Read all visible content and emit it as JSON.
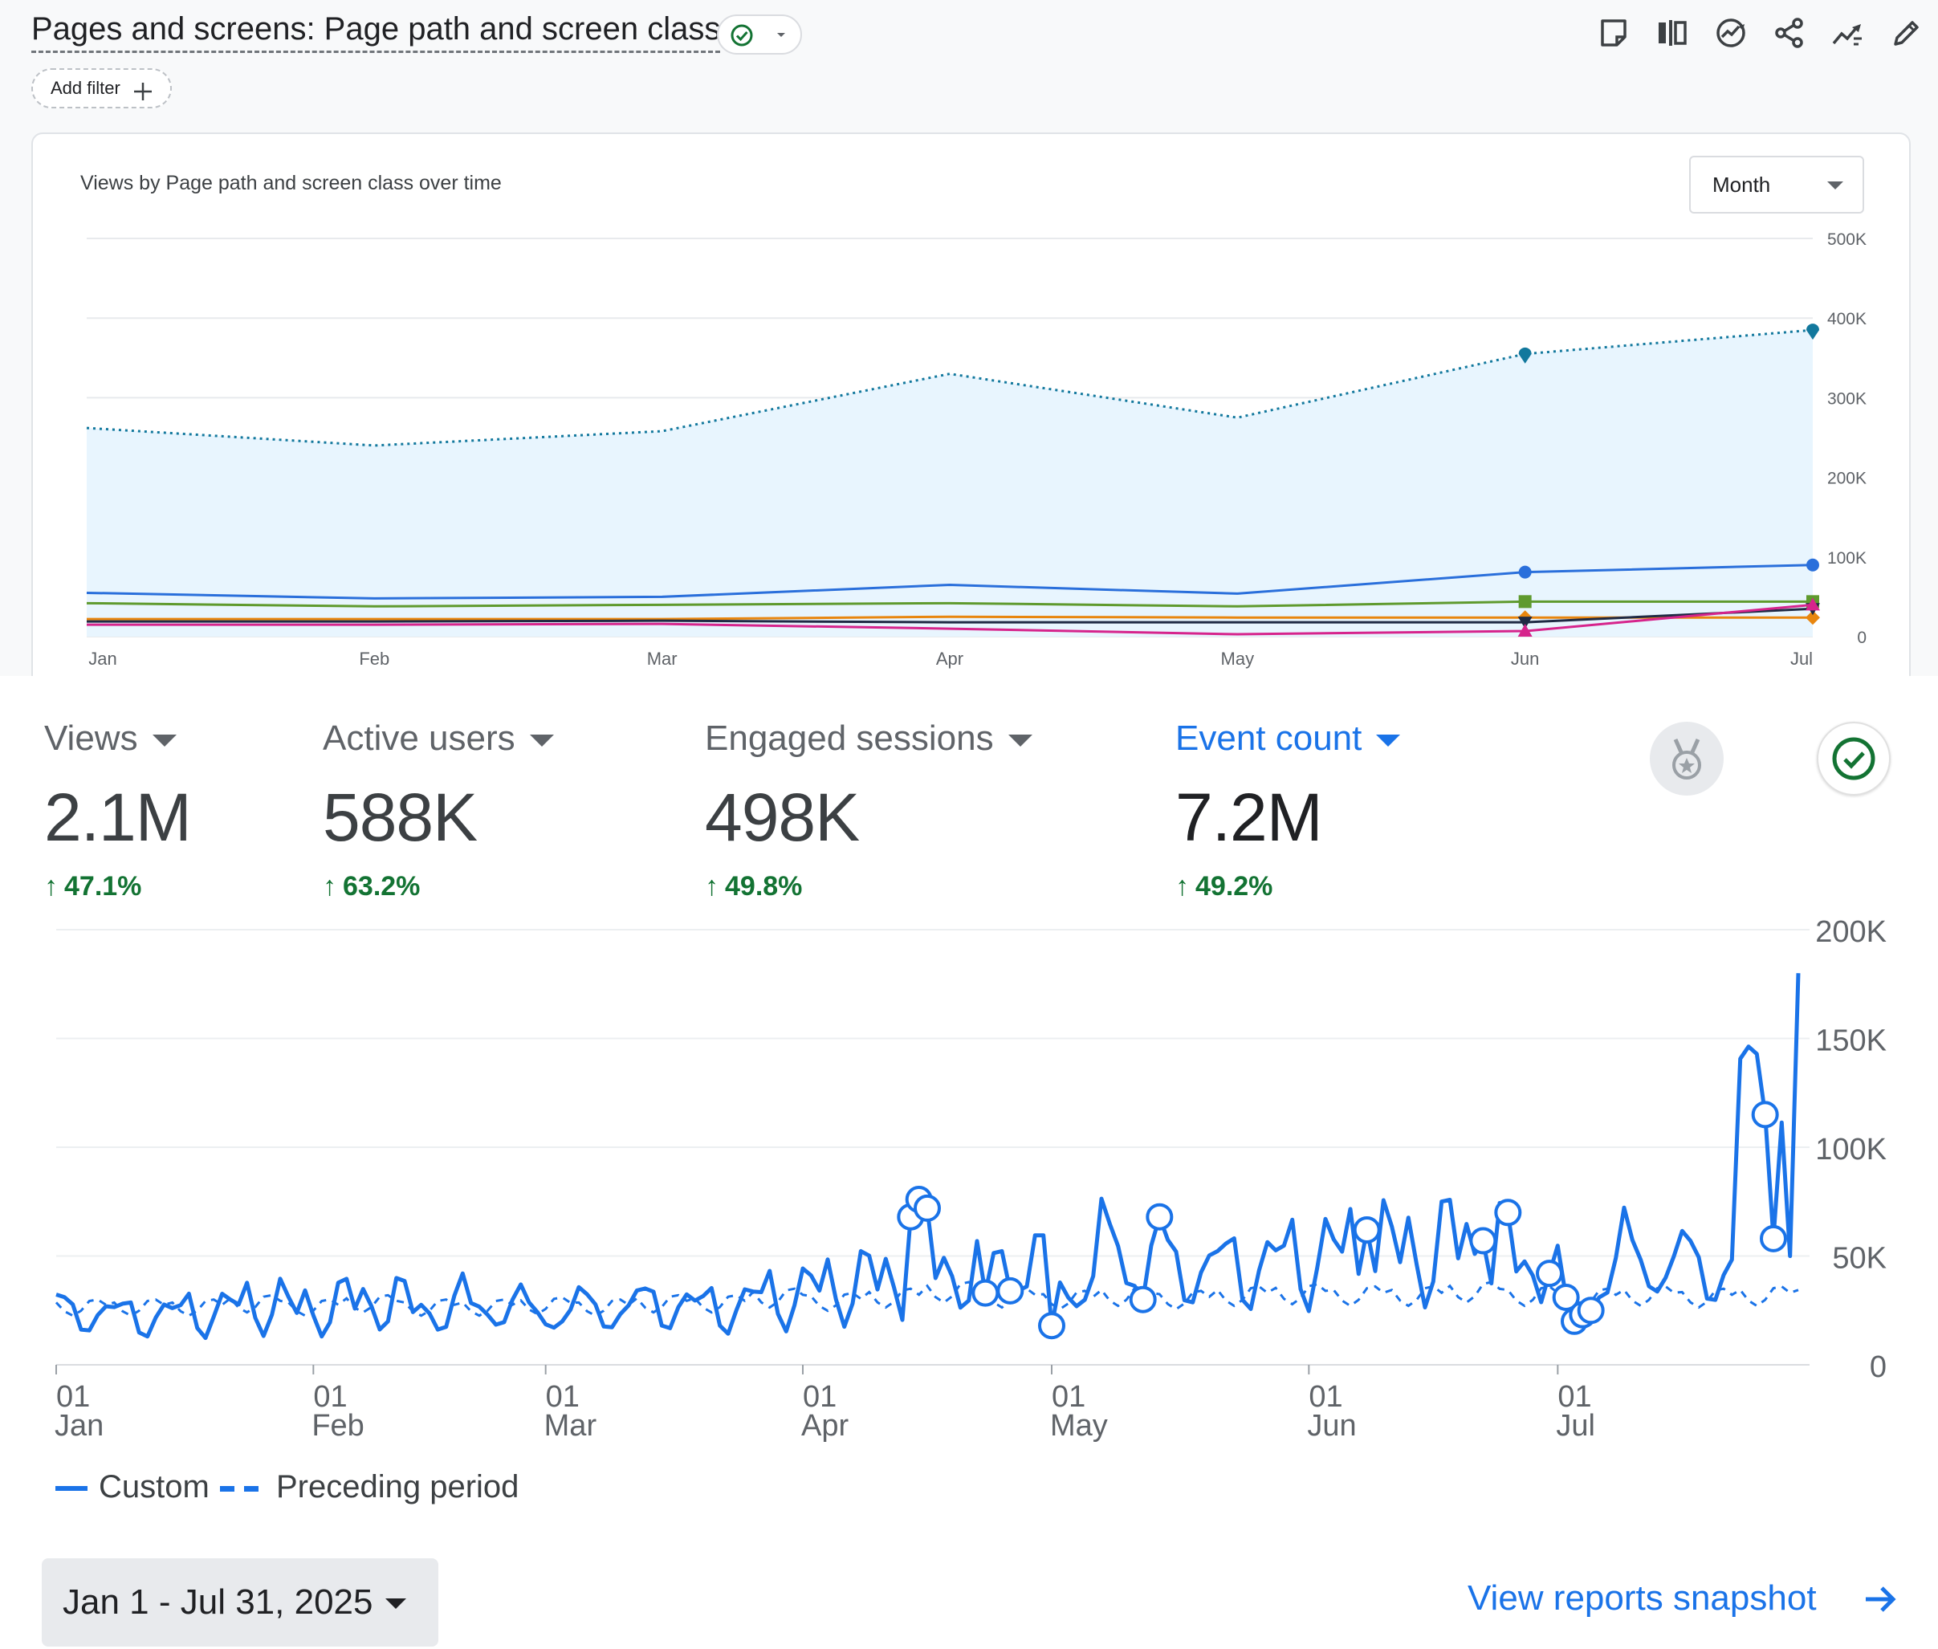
{
  "report": {
    "title": "Pages and screens: Page path and screen class",
    "add_filter_label": "Add filter"
  },
  "toolbar_icons": [
    "save-report-icon",
    "compare-icon",
    "insights-icon",
    "share-icon",
    "trend-icon",
    "edit-icon"
  ],
  "card1": {
    "title": "Views by Page path and screen class over time",
    "granularity": "Month"
  },
  "metrics": [
    {
      "label": "Views",
      "value": "2.1M",
      "change": "47.1%"
    },
    {
      "label": "Active users",
      "value": "588K",
      "change": "63.2%"
    },
    {
      "label": "Engaged sessions",
      "value": "498K",
      "change": "49.8%"
    },
    {
      "label": "Event count",
      "value": "7.2M",
      "change": "49.2%"
    }
  ],
  "legend": {
    "custom": "Custom",
    "preceding": "Preceding period"
  },
  "date_range": "Jan 1 - Jul 31, 2025",
  "view_snapshot": "View reports snapshot",
  "colors": {
    "accent": "#1a73e8",
    "positive": "#137333",
    "area_fill": "#e8f5fe",
    "series_total": "#12789d",
    "series_2": "#2a6fdb",
    "series_3": "#5f9a2e",
    "series_4": "#e8860f",
    "series_5": "#1f2a44",
    "series_6": "#d6248c"
  },
  "chart_data": [
    {
      "type": "line",
      "title": "Views by Page path and screen class over time",
      "categories": [
        "Jan",
        "Feb",
        "Mar",
        "Apr",
        "May",
        "Jun",
        "Jul"
      ],
      "y_ticks": [
        "0",
        "100K",
        "200K",
        "300K",
        "400K",
        "500K"
      ],
      "ylim": [
        0,
        500000
      ],
      "grid": true,
      "series": [
        {
          "values": [
            262000,
            240000,
            258000,
            330000,
            275000,
            355000,
            385000
          ],
          "style": "dotted-area"
        },
        {
          "values": [
            55000,
            48000,
            50000,
            65000,
            54000,
            81000,
            90000
          ]
        },
        {
          "values": [
            42000,
            38000,
            40000,
            42000,
            38000,
            44000,
            44000
          ]
        },
        {
          "values": [
            22000,
            22000,
            22000,
            25000,
            24000,
            24000,
            24000
          ]
        },
        {
          "values": [
            19000,
            19000,
            20000,
            18000,
            18000,
            18000,
            35000
          ]
        },
        {
          "values": [
            15000,
            15000,
            16000,
            10000,
            3000,
            7000,
            40000
          ]
        }
      ]
    },
    {
      "type": "line",
      "y_ticks": [
        "0",
        "50K",
        "100K",
        "150K",
        "200K"
      ],
      "ylim": [
        0,
        200000
      ],
      "x_ticks": [
        {
          "day": "01",
          "month": "Jan"
        },
        {
          "day": "01",
          "month": "Feb"
        },
        {
          "day": "01",
          "month": "Mar"
        },
        {
          "day": "01",
          "month": "Apr"
        },
        {
          "day": "01",
          "month": "May"
        },
        {
          "day": "01",
          "month": "Jun"
        },
        {
          "day": "01",
          "month": "Jul"
        }
      ],
      "series_names": [
        "Custom",
        "Preceding period"
      ],
      "custom_weekly_peaks": [
        38000,
        35000,
        37000,
        42000,
        40000,
        45000,
        40000,
        42000,
        38000,
        40000,
        43000,
        41000,
        48000,
        55000,
        60000,
        68000,
        80000,
        60000,
        82000,
        70000,
        70000,
        75000,
        80000,
        80000,
        85000,
        70000,
        70000,
        75000,
        70000,
        180000
      ],
      "preceding_weekly_peaks": [
        30000,
        30000,
        30000,
        32000,
        30000,
        32000,
        30000,
        30000,
        31000,
        30000,
        32000,
        32000,
        35000,
        33000,
        35000,
        38000,
        35000,
        34000,
        36000,
        34000,
        36000,
        37000,
        36000,
        36000,
        38000,
        36000,
        35000,
        36000,
        35000,
        36000
      ],
      "annotated_points": [
        {
          "date": "2025-04-14",
          "value": 68000
        },
        {
          "date": "2025-04-15",
          "value": 76000
        },
        {
          "date": "2025-04-16",
          "value": 72000
        },
        {
          "date": "2025-04-23",
          "value": 33000
        },
        {
          "date": "2025-04-26",
          "value": 34000
        },
        {
          "date": "2025-05-01",
          "value": 18000
        },
        {
          "date": "2025-05-12",
          "value": 30000
        },
        {
          "date": "2025-05-14",
          "value": 68000
        },
        {
          "date": "2025-06-08",
          "value": 62000
        },
        {
          "date": "2025-06-22",
          "value": 57000
        },
        {
          "date": "2025-06-25",
          "value": 70000
        },
        {
          "date": "2025-06-30",
          "value": 42000
        },
        {
          "date": "2025-07-02",
          "value": 31000
        },
        {
          "date": "2025-07-03",
          "value": 20000
        },
        {
          "date": "2025-07-04",
          "value": 23000
        },
        {
          "date": "2025-07-05",
          "value": 25000
        },
        {
          "date": "2025-07-26",
          "value": 115000
        },
        {
          "date": "2025-07-27",
          "value": 58000
        }
      ]
    }
  ]
}
